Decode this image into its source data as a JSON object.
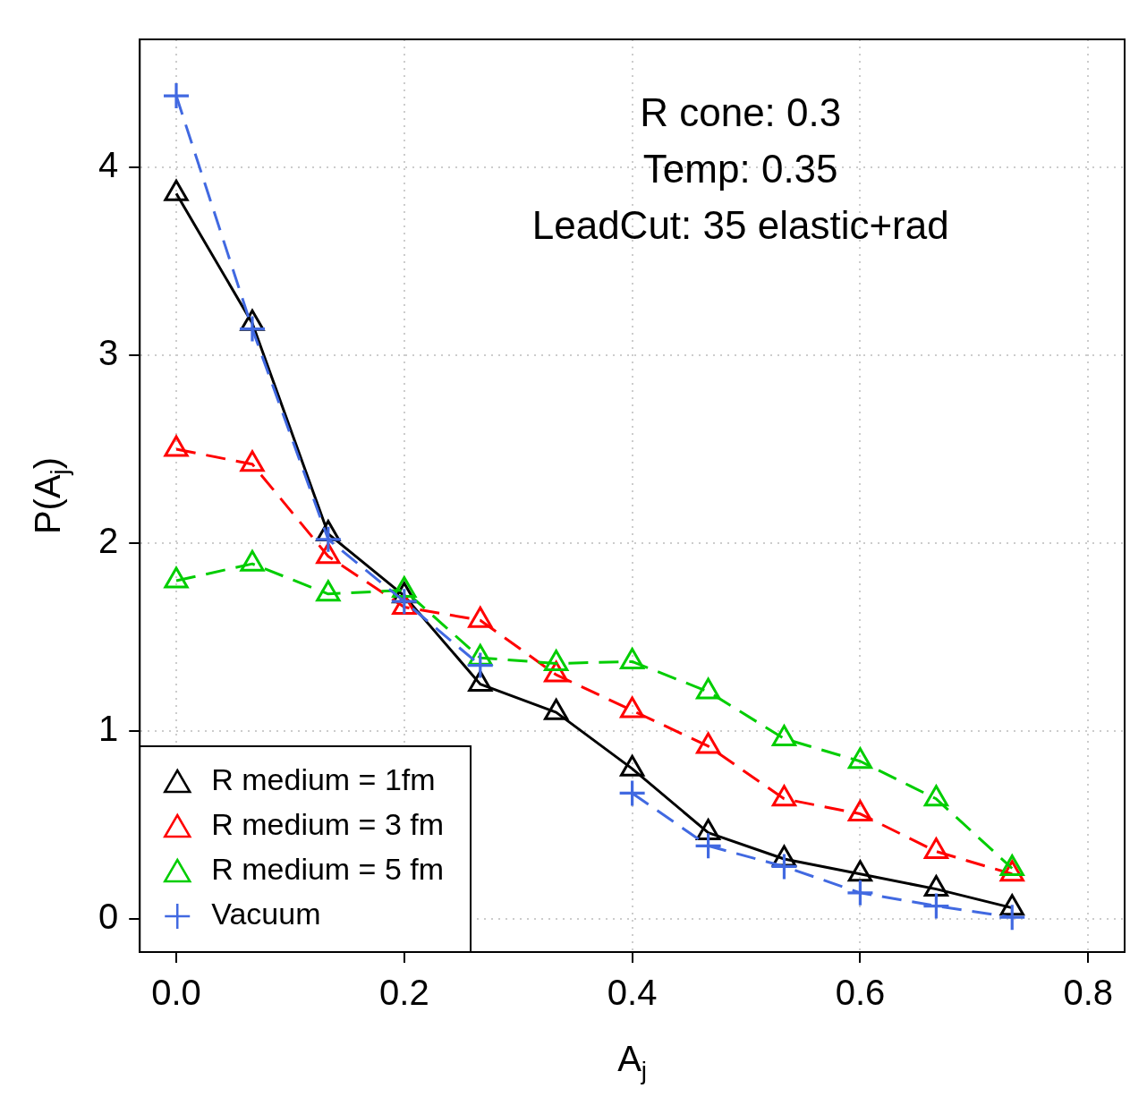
{
  "chart_data": {
    "type": "line",
    "xlabel": "A$_{j}$",
    "ylabel": "P(A$_{j}$)",
    "annotations": [
      "R cone: 0.3",
      "Temp: 0.35",
      "LeadCut: 35 elastic+rad"
    ],
    "x": [
      0,
      0.0667,
      0.1333,
      0.2,
      0.2667,
      0.3333,
      0.4,
      0.4667,
      0.5333,
      0.6,
      0.6667,
      0.7333
    ],
    "series": [
      {
        "name": "R medium = 1fm",
        "color": "#000000",
        "marker": "triangle",
        "line_style": "solid",
        "values": [
          3.86,
          3.17,
          2.05,
          1.72,
          1.25,
          1.1,
          0.8,
          0.46,
          0.32,
          0.24,
          0.16,
          0.06
        ]
      },
      {
        "name": "R medium = 3 fm",
        "color": "#ff0000",
        "marker": "triangle",
        "line_style": "dashed",
        "values": [
          2.5,
          2.42,
          1.93,
          1.66,
          1.59,
          1.3,
          1.11,
          0.92,
          0.64,
          0.56,
          0.36,
          0.24
        ]
      },
      {
        "name": "R medium = 5 fm",
        "color": "#00cd00",
        "marker": "triangle",
        "line_style": "dashed",
        "values": [
          1.8,
          1.89,
          1.73,
          1.75,
          1.39,
          1.36,
          1.37,
          1.21,
          0.96,
          0.84,
          0.64,
          0.27
        ]
      },
      {
        "name": "Vacuum",
        "color": "#4169e1",
        "marker": "cross",
        "line_style": "dashed",
        "values": [
          4.38,
          3.14,
          2.02,
          1.69,
          1.35,
          null,
          0.67,
          0.39,
          0.28,
          0.14,
          0.07,
          0.01
        ]
      }
    ],
    "xlim": [
      -0.032,
      0.832
    ],
    "xticks": [
      {
        "value": 0,
        "label": "0.0"
      },
      {
        "value": 0.2,
        "label": "0.2"
      },
      {
        "value": 0.4,
        "label": "0.4"
      },
      {
        "value": 0.6,
        "label": "0.6"
      },
      {
        "value": 0.8,
        "label": "0.8"
      }
    ],
    "ylim": [
      -0.175,
      4.68
    ],
    "yticks": [
      0,
      1,
      2,
      3,
      4
    ],
    "grid": true,
    "legend": "bottom left"
  }
}
